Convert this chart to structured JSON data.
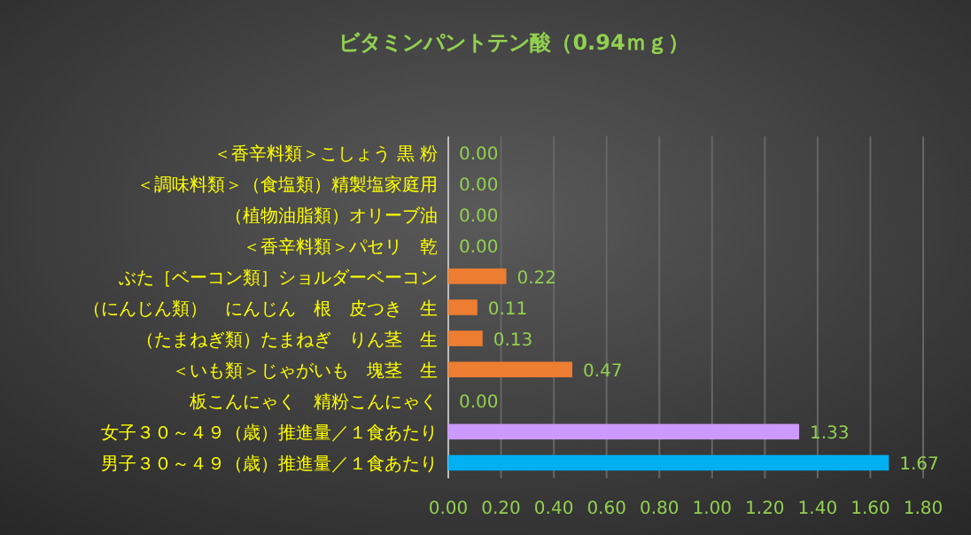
{
  "chart_data": {
    "type": "bar",
    "orientation": "horizontal",
    "title": "ビタミンパントテン酸（0.94ｍｇ）",
    "categories": [
      "＜香辛料類＞こしょう 黒 粉",
      "＜調味料類＞（食塩類）精製塩家庭用",
      "（植物油脂類）オリーブ油",
      "＜香辛料類＞パセリ　乾",
      "ぶた［ベーコン類］ショルダーベーコン",
      "（にんじん類）　にんじん　根　皮つき　生",
      "（たまねぎ類）たまねぎ　りん茎　生",
      "＜いも類＞じゃがいも　塊茎　生",
      "板こんにゃく　精粉こんにゃく",
      "女子３０～４９（歳）推進量／１食あたり",
      "男子３０～４９（歳）推進量／１食あたり"
    ],
    "values": [
      0,
      0,
      0,
      0,
      0.22,
      0.11,
      0.13,
      0.47,
      0,
      1.33,
      1.67
    ],
    "colors": [
      "#ed7d31",
      "#ed7d31",
      "#ed7d31",
      "#ed7d31",
      "#ed7d31",
      "#ed7d31",
      "#ed7d31",
      "#ed7d31",
      "#ed7d31",
      "#cc99ff",
      "#00b0f0"
    ],
    "value_labels": [
      "0.00",
      "0.00",
      "0.00",
      "0.00",
      "0.22",
      "0.11",
      "0.13",
      "0.47",
      "0.00",
      "1.33",
      "1.67"
    ],
    "xlim": [
      0,
      1.8
    ],
    "xticks": [
      {
        "value": 0,
        "label": "0.00"
      },
      {
        "value": 0.2,
        "label": "0.20"
      },
      {
        "value": 0.4,
        "label": "0.40"
      },
      {
        "value": 0.6,
        "label": "0.60"
      },
      {
        "value": 0.8,
        "label": "0.80"
      },
      {
        "value": 1,
        "label": "1.00"
      },
      {
        "value": 1.2,
        "label": "1.20"
      },
      {
        "value": 1.4,
        "label": "1.40"
      },
      {
        "value": 1.6,
        "label": "1.60"
      },
      {
        "value": 1.8,
        "label": "1.80"
      }
    ],
    "grid": "x"
  }
}
